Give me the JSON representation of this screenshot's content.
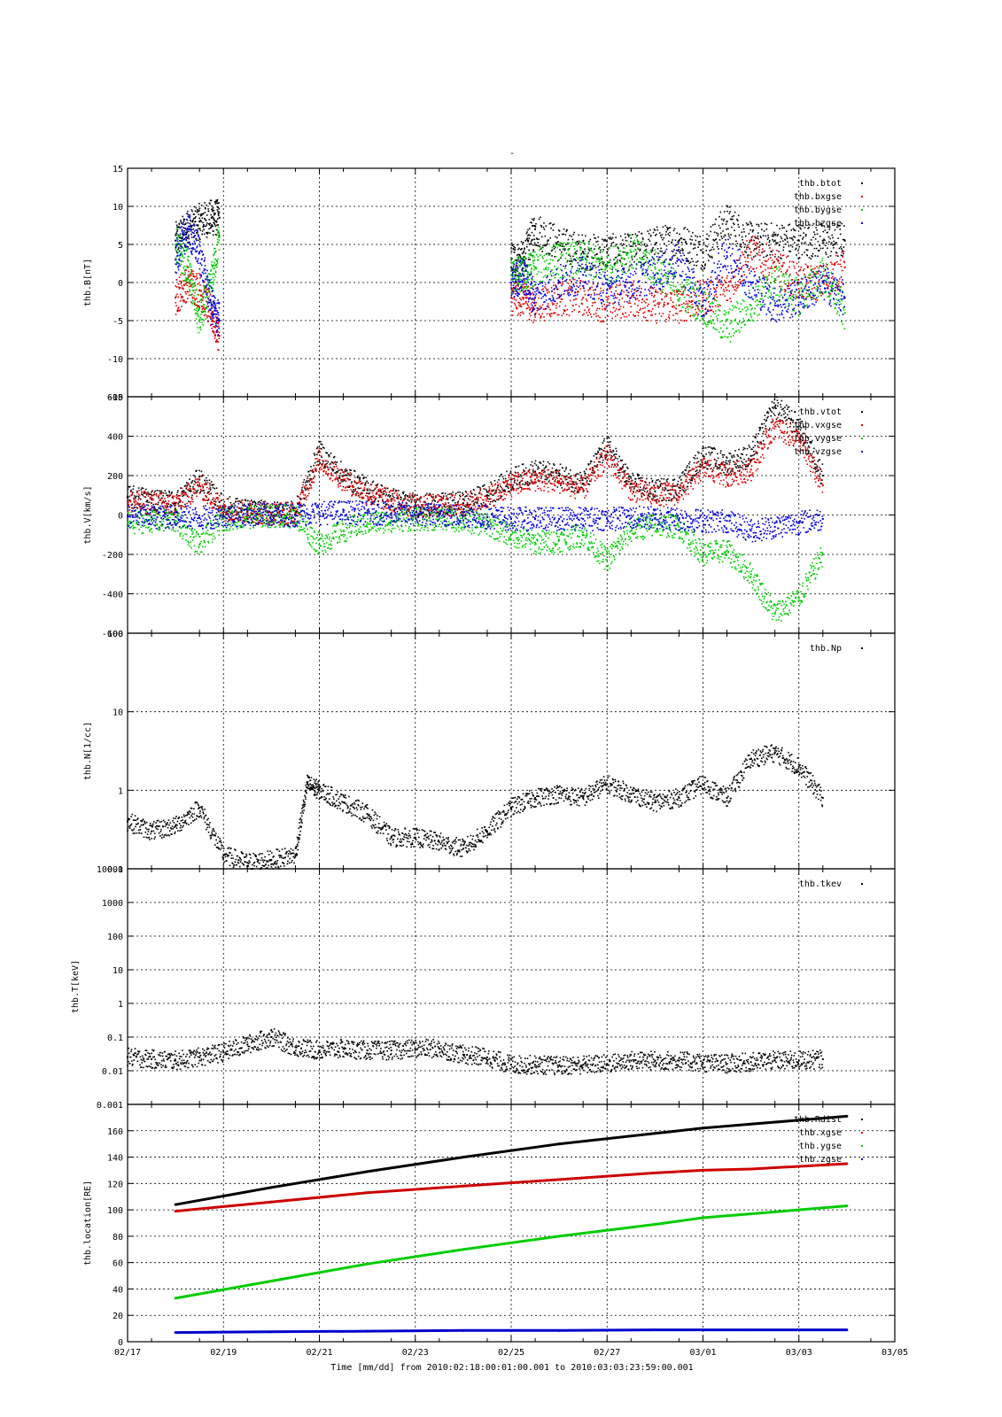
{
  "figure": {
    "title": "-",
    "xlabel": "Time [mm/dd]  from 2010:02:18:00:01:00.001  to  2010:03:03:23:59:00.001"
  },
  "chart_data": [
    {
      "type": "scatter",
      "ylabel": "thb.B[nT]",
      "yscale": "linear",
      "ylim": [
        -15,
        15
      ],
      "yticks": [
        -15,
        -10,
        -5,
        0,
        5,
        10,
        15
      ],
      "grid": true,
      "legend_position": "top-right",
      "colors": {
        "thb.btot": "#000000",
        "thb.bxgse": "#dd0000",
        "thb.bygse": "#00cc00",
        "thb.bzgse": "#0000dd"
      },
      "series": [
        {
          "name": "thb.btot",
          "x": [
            "02/18 00:00",
            "02/18 06:00",
            "02/18 12:00",
            "02/18 18:00",
            "02/18 22:00",
            "02/25 00:00",
            "02/25 06:00",
            "02/25 12:00",
            "02/26 00:00",
            "02/26 12:00",
            "02/27 00:00",
            "02/27 12:00",
            "02/28 00:00",
            "02/28 12:00",
            "03/01 00:00",
            "03/01 12:00",
            "03/02 00:00",
            "03/02 12:00",
            "03/03 00:00",
            "03/03 12:00",
            "03/03 23:00"
          ],
          "y": [
            5.5,
            7,
            8,
            8.5,
            8.5,
            3,
            3,
            7,
            5,
            4,
            4,
            4,
            5,
            5.5,
            4,
            8,
            5.5,
            5.5,
            5.5,
            5.5,
            5.5
          ]
        },
        {
          "name": "thb.bxgse",
          "x": [
            "02/18 00:00",
            "02/18 06:00",
            "02/18 12:00",
            "02/18 18:00",
            "02/18 22:00",
            "02/25 00:00",
            "02/25 06:00",
            "02/25 12:00",
            "02/26 00:00",
            "02/26 12:00",
            "02/27 00:00",
            "02/27 12:00",
            "02/28 00:00",
            "02/28 12:00",
            "03/01 00:00",
            "03/01 12:00",
            "03/02 00:00",
            "03/02 12:00",
            "03/03 00:00",
            "03/03 12:00",
            "03/03 23:00"
          ],
          "y": [
            -2,
            0,
            -1,
            -4,
            -7,
            -2,
            -2,
            -3,
            -2,
            -2,
            -3,
            -2,
            -3,
            -3,
            -2,
            -1,
            4,
            2,
            0,
            0,
            2
          ]
        },
        {
          "name": "thb.bygse",
          "x": [
            "02/18 00:00",
            "02/18 06:00",
            "02/18 12:00",
            "02/18 18:00",
            "02/18 22:00",
            "02/25 00:00",
            "02/25 06:00",
            "02/25 12:00",
            "02/26 00:00",
            "02/26 12:00",
            "02/27 00:00",
            "02/27 12:00",
            "02/28 00:00",
            "02/28 12:00",
            "03/01 00:00",
            "03/01 12:00",
            "03/02 00:00",
            "03/02 12:00",
            "03/03 00:00",
            "03/03 12:00",
            "03/03 23:00"
          ],
          "y": [
            5,
            2,
            -5,
            0,
            6,
            1,
            1,
            2,
            3,
            3,
            2,
            4,
            2,
            -1,
            -3,
            -6,
            -3,
            0,
            -2,
            1,
            -4
          ]
        },
        {
          "name": "thb.bzgse",
          "x": [
            "02/18 00:00",
            "02/18 06:00",
            "02/18 12:00",
            "02/18 18:00",
            "02/18 22:00",
            "02/25 00:00",
            "02/25 06:00",
            "02/25 12:00",
            "02/26 00:00",
            "02/26 12:00",
            "02/27 00:00",
            "02/27 12:00",
            "02/28 00:00",
            "02/28 12:00",
            "03/01 00:00",
            "03/01 12:00",
            "03/02 00:00",
            "03/02 12:00",
            "03/03 00:00",
            "03/03 12:00",
            "03/03 23:00"
          ],
          "y": [
            3,
            7,
            4,
            -3,
            -5,
            0,
            1,
            -2,
            0,
            1,
            -1,
            0,
            1,
            3,
            -3,
            4,
            0,
            -3,
            -2,
            0,
            -2
          ]
        }
      ]
    },
    {
      "type": "scatter",
      "ylabel": "thb.V[km/s]",
      "yscale": "linear",
      "ylim": [
        -600,
        600
      ],
      "yticks": [
        -600,
        -400,
        -200,
        0,
        200,
        400,
        600
      ],
      "grid": true,
      "legend_position": "top-right",
      "colors": {
        "thb.vtot": "#000000",
        "thb.vxgse": "#dd0000",
        "thb.vygse": "#00cc00",
        "thb.vzgse": "#0000dd"
      },
      "series": [
        {
          "name": "thb.vtot",
          "x": [
            "02/17 00:00",
            "02/17 12:00",
            "02/18 00:00",
            "02/18 12:00",
            "02/19 00:00",
            "02/19 12:00",
            "02/20 00:00",
            "02/20 12:00",
            "02/21 00:00",
            "02/21 12:00",
            "02/22 00:00",
            "02/22 12:00",
            "02/23 00:00",
            "02/23 12:00",
            "02/24 00:00",
            "02/24 12:00",
            "02/25 00:00",
            "02/25 12:00",
            "02/26 00:00",
            "02/26 12:00",
            "02/27 00:00",
            "02/27 12:00",
            "02/28 00:00",
            "02/28 12:00",
            "03/01 00:00",
            "03/01 12:00",
            "03/02 00:00",
            "03/02 12:00",
            "03/03 00:00",
            "03/03 12:00"
          ],
          "y": [
            90,
            80,
            60,
            180,
            40,
            20,
            10,
            10,
            320,
            200,
            130,
            80,
            50,
            50,
            60,
            100,
            180,
            220,
            200,
            160,
            350,
            160,
            120,
            140,
            300,
            260,
            300,
            550,
            450,
            200
          ]
        },
        {
          "name": "thb.vxgse",
          "x": [
            "02/17 00:00",
            "02/17 12:00",
            "02/18 00:00",
            "02/18 12:00",
            "02/19 00:00",
            "02/19 12:00",
            "02/20 00:00",
            "02/20 12:00",
            "02/21 00:00",
            "02/21 12:00",
            "02/22 00:00",
            "02/22 12:00",
            "02/23 00:00",
            "02/23 12:00",
            "02/24 00:00",
            "02/24 12:00",
            "02/25 00:00",
            "02/25 12:00",
            "02/26 00:00",
            "02/26 12:00",
            "02/27 00:00",
            "02/27 12:00",
            "02/28 00:00",
            "02/28 12:00",
            "03/01 00:00",
            "03/01 12:00",
            "03/02 00:00",
            "03/02 12:00",
            "03/03 00:00",
            "03/03 12:00"
          ],
          "y": [
            70,
            60,
            50,
            150,
            30,
            15,
            8,
            8,
            280,
            180,
            110,
            70,
            45,
            45,
            50,
            90,
            150,
            180,
            170,
            130,
            300,
            130,
            100,
            110,
            240,
            200,
            230,
            450,
            380,
            150
          ]
        },
        {
          "name": "thb.vygse",
          "x": [
            "02/17 00:00",
            "02/17 12:00",
            "02/18 00:00",
            "02/18 12:00",
            "02/19 00:00",
            "02/19 12:00",
            "02/20 00:00",
            "02/20 12:00",
            "02/21 00:00",
            "02/21 12:00",
            "02/22 00:00",
            "02/22 12:00",
            "02/23 00:00",
            "02/23 12:00",
            "02/24 00:00",
            "02/24 12:00",
            "02/25 00:00",
            "02/25 12:00",
            "02/26 00:00",
            "02/26 12:00",
            "02/27 00:00",
            "02/27 12:00",
            "02/28 00:00",
            "02/28 12:00",
            "03/01 00:00",
            "03/01 12:00",
            "03/02 00:00",
            "03/02 12:00",
            "03/03 00:00",
            "03/03 12:00"
          ],
          "y": [
            -40,
            -30,
            -30,
            -150,
            -20,
            -10,
            -5,
            -5,
            -150,
            -80,
            -40,
            -30,
            -20,
            -20,
            -30,
            -50,
            -100,
            -140,
            -130,
            -100,
            -230,
            -80,
            -50,
            -60,
            -200,
            -180,
            -300,
            -500,
            -420,
            -200
          ]
        },
        {
          "name": "thb.vzgse",
          "x": [
            "02/17 00:00",
            "02/17 12:00",
            "02/18 00:00",
            "02/18 12:00",
            "02/19 00:00",
            "02/19 12:00",
            "02/20 00:00",
            "02/20 12:00",
            "02/21 00:00",
            "02/21 12:00",
            "02/22 00:00",
            "02/22 12:00",
            "02/23 00:00",
            "02/23 12:00",
            "02/24 00:00",
            "02/24 12:00",
            "02/25 00:00",
            "02/25 12:00",
            "02/26 00:00",
            "02/26 12:00",
            "02/27 00:00",
            "02/27 12:00",
            "02/28 00:00",
            "02/28 12:00",
            "03/01 00:00",
            "03/01 12:00",
            "03/02 00:00",
            "03/02 12:00",
            "03/03 00:00",
            "03/03 12:00"
          ],
          "y": [
            -5,
            -10,
            -10,
            -15,
            -5,
            0,
            0,
            0,
            10,
            15,
            10,
            5,
            0,
            0,
            -5,
            -10,
            -20,
            -20,
            -20,
            -20,
            -20,
            -15,
            -15,
            -20,
            -30,
            -30,
            -80,
            -60,
            -40,
            -20
          ]
        }
      ]
    },
    {
      "type": "scatter",
      "ylabel": "thb.N[1/cc]",
      "yscale": "log",
      "ylim": [
        0.1,
        100
      ],
      "yticks": [
        0.1,
        1,
        10,
        100
      ],
      "grid": true,
      "legend_position": "top-right",
      "colors": {
        "thb.Np": "#000000"
      },
      "series": [
        {
          "name": "thb.Np",
          "x": [
            "02/17 00:00",
            "02/17 12:00",
            "02/18 00:00",
            "02/18 12:00",
            "02/19 00:00",
            "02/19 12:00",
            "02/20 00:00",
            "02/20 12:00",
            "02/20 18:00",
            "02/21 00:00",
            "02/21 12:00",
            "02/22 00:00",
            "02/22 12:00",
            "02/23 00:00",
            "02/23 12:00",
            "02/24 00:00",
            "02/24 12:00",
            "02/25 00:00",
            "02/25 12:00",
            "02/26 00:00",
            "02/26 12:00",
            "02/27 00:00",
            "02/27 12:00",
            "02/28 00:00",
            "02/28 12:00",
            "03/01 00:00",
            "03/01 12:00",
            "03/02 00:00",
            "03/02 12:00",
            "03/03 00:00",
            "03/03 12:00"
          ],
          "y": [
            0.4,
            0.3,
            0.35,
            0.6,
            0.15,
            0.12,
            0.13,
            0.15,
            1.2,
            1.0,
            0.7,
            0.5,
            0.25,
            0.25,
            0.22,
            0.18,
            0.3,
            0.6,
            0.8,
            0.9,
            0.8,
            1.2,
            0.9,
            0.7,
            0.8,
            1.2,
            0.8,
            2.5,
            3.0,
            2.0,
            0.8
          ]
        }
      ]
    },
    {
      "type": "scatter",
      "ylabel": "thb.T[keV]",
      "yscale": "log",
      "ylim": [
        0.001,
        10000
      ],
      "yticks": [
        0.001,
        0.01,
        0.1,
        1,
        10,
        100,
        1000,
        10000
      ],
      "grid": true,
      "legend_position": "top-right",
      "colors": {
        "thb.tkev": "#000000"
      },
      "series": [
        {
          "name": "thb.tkev",
          "x": [
            "02/17 00:00",
            "02/17 12:00",
            "02/18 00:00",
            "02/18 12:00",
            "02/19 00:00",
            "02/19 12:00",
            "02/20 00:00",
            "02/20 12:00",
            "02/21 00:00",
            "02/21 12:00",
            "02/22 00:00",
            "02/22 12:00",
            "02/23 00:00",
            "02/23 12:00",
            "02/24 00:00",
            "02/24 12:00",
            "02/25 00:00",
            "02/25 12:00",
            "02/26 00:00",
            "02/26 12:00",
            "02/27 00:00",
            "02/27 12:00",
            "02/28 00:00",
            "02/28 12:00",
            "03/01 00:00",
            "03/01 12:00",
            "03/02 00:00",
            "03/02 12:00",
            "03/03 00:00",
            "03/03 12:00"
          ],
          "y": [
            0.025,
            0.022,
            0.02,
            0.025,
            0.035,
            0.06,
            0.1,
            0.05,
            0.04,
            0.045,
            0.04,
            0.04,
            0.045,
            0.045,
            0.03,
            0.025,
            0.015,
            0.015,
            0.014,
            0.015,
            0.016,
            0.02,
            0.02,
            0.02,
            0.017,
            0.016,
            0.018,
            0.02,
            0.02,
            0.022
          ]
        }
      ]
    },
    {
      "type": "line",
      "ylabel": "thb.location[RE]",
      "yscale": "linear",
      "ylim": [
        0,
        180
      ],
      "yticks": [
        0,
        20,
        40,
        60,
        80,
        100,
        120,
        140,
        160
      ],
      "grid": true,
      "legend_position": "top-right",
      "colors": {
        "thb.Rdist": "#000000",
        "thb.xgse": "#cc0000",
        "thb.ygse": "#00cc00",
        "thb.zgse": "#0000cc"
      },
      "series": [
        {
          "name": "thb.Rdist",
          "x": [
            "02/18 00:00",
            "02/20 00:00",
            "02/22 00:00",
            "02/24 00:00",
            "02/26 00:00",
            "02/28 00:00",
            "03/01 00:00",
            "03/02 00:00",
            "03/04 00:00"
          ],
          "y": [
            104,
            117,
            129,
            140,
            150,
            158,
            162,
            165,
            171
          ]
        },
        {
          "name": "thb.xgse",
          "x": [
            "02/18 00:00",
            "02/20 00:00",
            "02/22 00:00",
            "02/24 00:00",
            "02/26 00:00",
            "02/28 00:00",
            "03/01 00:00",
            "03/02 00:00",
            "03/04 00:00"
          ],
          "y": [
            99,
            106,
            113,
            118,
            123,
            128,
            130,
            131,
            135
          ]
        },
        {
          "name": "thb.ygse",
          "x": [
            "02/18 00:00",
            "02/20 00:00",
            "02/22 00:00",
            "02/24 00:00",
            "02/26 00:00",
            "02/28 00:00",
            "03/01 00:00",
            "03/02 00:00",
            "03/04 00:00"
          ],
          "y": [
            33,
            46,
            59,
            70,
            80,
            89,
            94,
            97,
            103
          ]
        },
        {
          "name": "thb.zgse",
          "x": [
            "02/18 00:00",
            "02/20 00:00",
            "02/22 00:00",
            "02/24 00:00",
            "02/26 00:00",
            "02/28 00:00",
            "03/01 00:00",
            "03/02 00:00",
            "03/04 00:00"
          ],
          "y": [
            7,
            7.5,
            8,
            8.5,
            8.5,
            9,
            9,
            9,
            9
          ]
        }
      ]
    }
  ],
  "xaxis": {
    "type": "date",
    "range": [
      "02/17 00:00",
      "03/05 00:00"
    ],
    "ticks": [
      {
        "label": "02/17",
        "at": "02/17 00:00"
      },
      {
        "label": "02/19",
        "at": "02/19 00:00"
      },
      {
        "label": "02/21",
        "at": "02/21 00:00"
      },
      {
        "label": "02/23",
        "at": "02/23 00:00"
      },
      {
        "label": "02/25",
        "at": "02/25 00:00"
      },
      {
        "label": "02/27",
        "at": "02/27 00:00"
      },
      {
        "label": "03/01",
        "at": "03/01 00:00"
      },
      {
        "label": "03/03",
        "at": "03/03 00:00"
      },
      {
        "label": "03/05",
        "at": "03/05 00:00"
      }
    ]
  }
}
